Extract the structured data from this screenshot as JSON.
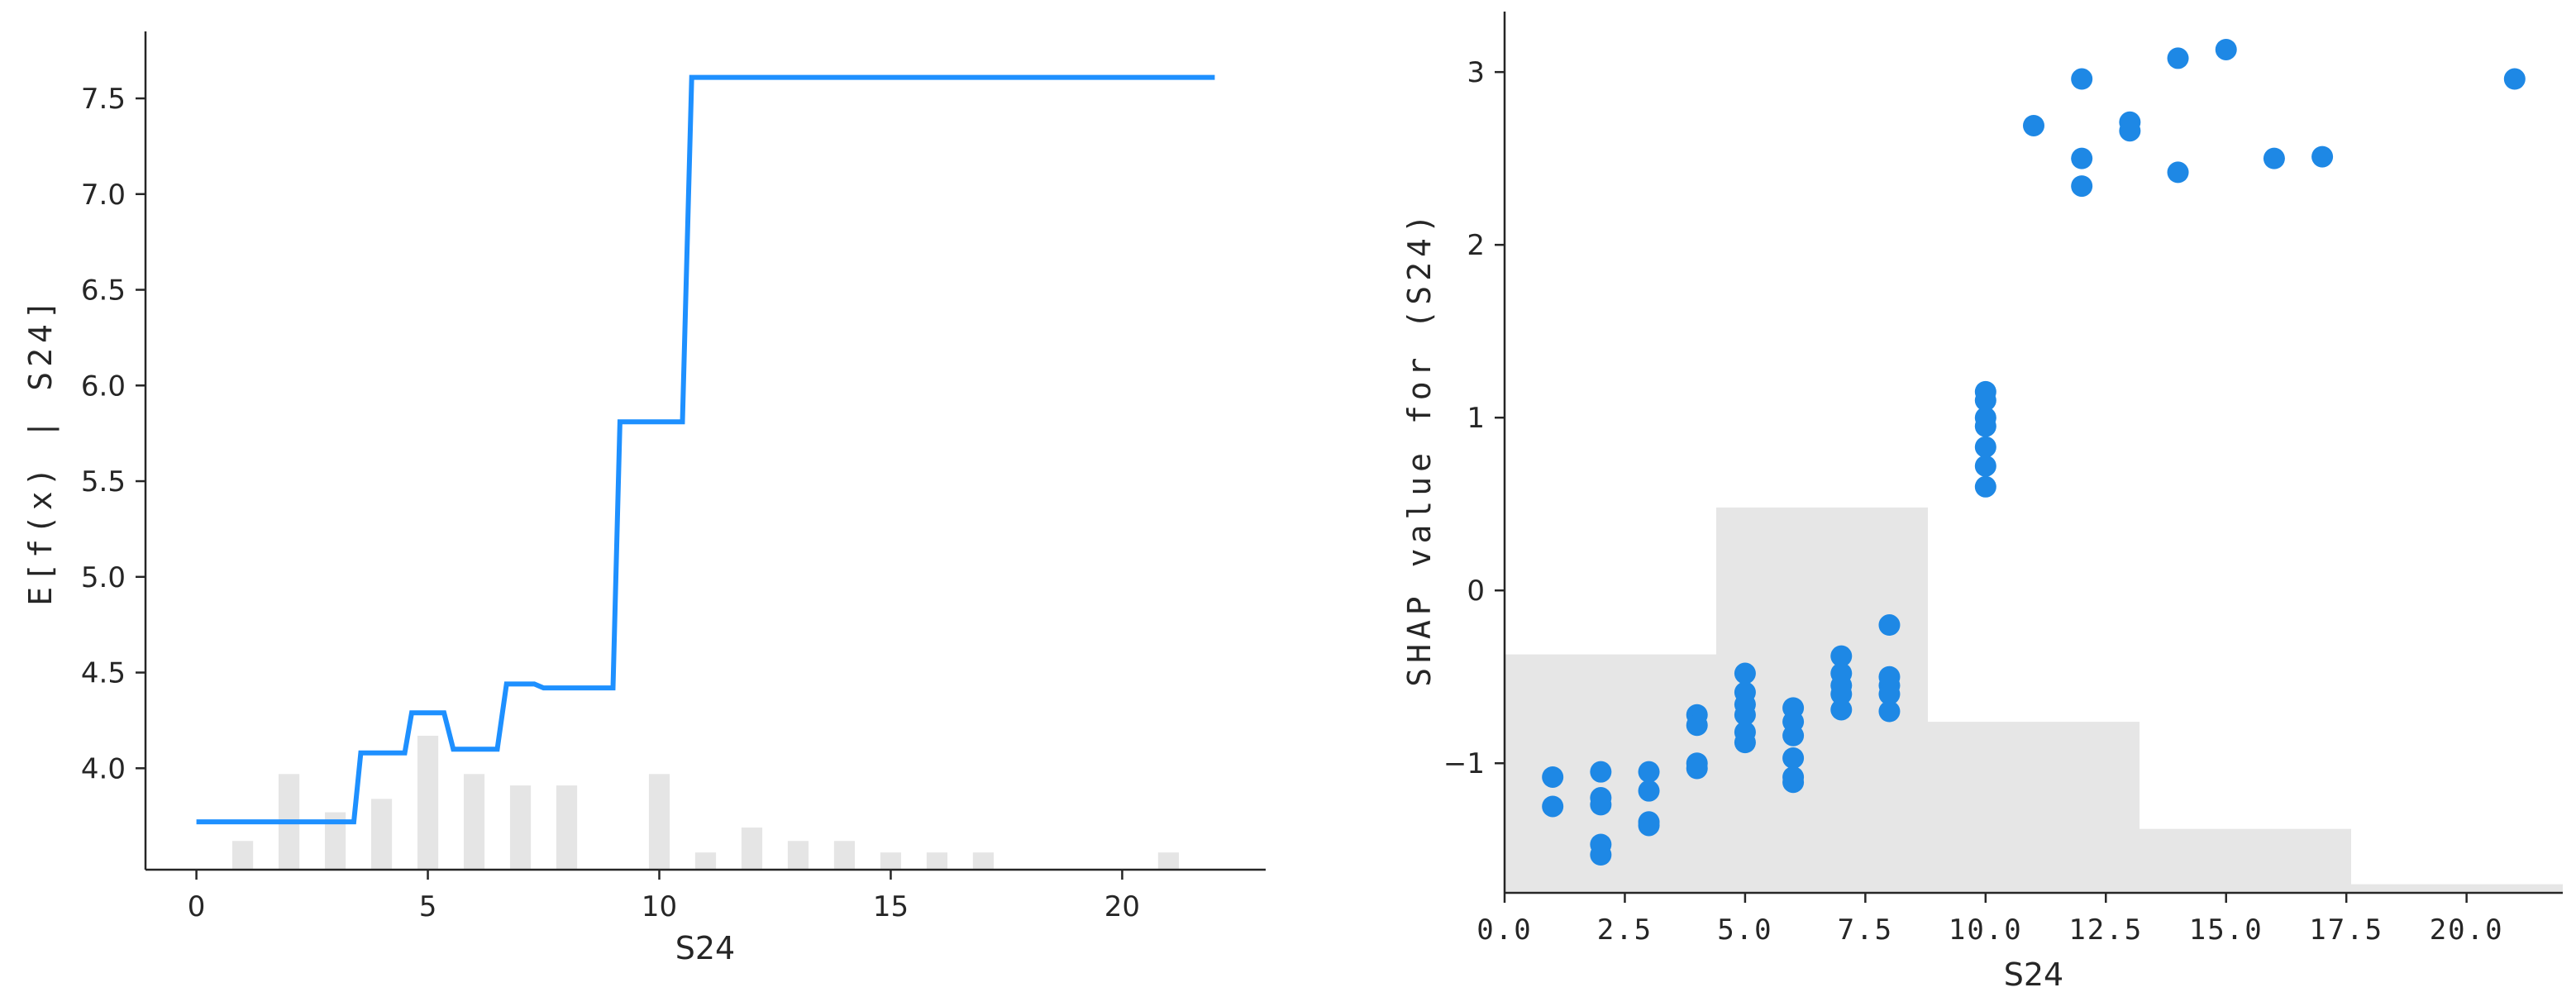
{
  "chart_data": [
    {
      "type": "line",
      "xlabel": "S24",
      "ylabel": "E[f(x) | S24]",
      "xlim": [
        -1.1,
        23.1
      ],
      "ylim": [
        3.47,
        7.85
      ],
      "xticks": [
        0,
        5,
        10,
        15,
        20
      ],
      "yticks": [
        4.0,
        4.5,
        5.0,
        5.5,
        6.0,
        6.5,
        7.0,
        7.5
      ],
      "ytick_labels": [
        "4.0",
        "4.5",
        "5.0",
        "5.5",
        "6.0",
        "6.5",
        "7.0",
        "7.5"
      ],
      "line_color": "#1E90FF",
      "histogram_color": "#E5E5E5",
      "series": [
        {
          "x": [
            0,
            3.4,
            3.55,
            4.5,
            4.65,
            5.35,
            5.55,
            6.5,
            6.7,
            7.3,
            7.5,
            9.0,
            9.15,
            10.5,
            10.7,
            22
          ],
          "y": [
            3.72,
            3.72,
            4.08,
            4.08,
            4.29,
            4.29,
            4.1,
            4.1,
            4.44,
            4.44,
            4.42,
            4.42,
            5.81,
            5.81,
            7.61,
            7.61
          ]
        }
      ],
      "histogram": {
        "bins": [
          1,
          2,
          3,
          4,
          5,
          6,
          7,
          8,
          10,
          11,
          12,
          13,
          14,
          15,
          16,
          17,
          21
        ],
        "heights": [
          3.62,
          3.97,
          3.77,
          3.84,
          4.17,
          3.97,
          3.91,
          3.91,
          3.97,
          3.56,
          3.69,
          3.62,
          3.62,
          3.56,
          3.56,
          3.56,
          3.56
        ]
      }
    },
    {
      "type": "scatter",
      "xlabel": "S24",
      "ylabel": "SHAP value for  (S24)",
      "xlim": [
        0,
        22
      ],
      "ylim": [
        -1.75,
        3.35
      ],
      "xticks": [
        0,
        2.5,
        5,
        7.5,
        10,
        12.5,
        15,
        17.5,
        20
      ],
      "xtick_labels": [
        "0.0",
        "2.5",
        "5.0",
        "7.5",
        "10.0",
        "12.5",
        "15.0",
        "17.5",
        "20.0"
      ],
      "yticks": [
        -1,
        0,
        1,
        2,
        3
      ],
      "ytick_labels": [
        "−1",
        "0",
        "1",
        "2",
        "3"
      ],
      "point_color": "#1E88E5",
      "histogram_color": "#E6E6E6",
      "histogram": {
        "edges": [
          0,
          4.4,
          8.8,
          13.2,
          17.6,
          22
        ],
        "levels": [
          -0.37,
          0.48,
          -0.76,
          -1.38,
          -1.7
        ]
      },
      "points": [
        {
          "x": 1,
          "y": -1.08
        },
        {
          "x": 1,
          "y": -1.25
        },
        {
          "x": 2,
          "y": -1.05
        },
        {
          "x": 2,
          "y": -1.2
        },
        {
          "x": 2,
          "y": -1.24
        },
        {
          "x": 2,
          "y": -1.47
        },
        {
          "x": 2,
          "y": -1.53
        },
        {
          "x": 3,
          "y": -1.05
        },
        {
          "x": 3,
          "y": -1.16
        },
        {
          "x": 3,
          "y": -1.34
        },
        {
          "x": 3,
          "y": -1.36
        },
        {
          "x": 4,
          "y": -0.72
        },
        {
          "x": 4,
          "y": -0.78
        },
        {
          "x": 4,
          "y": -1.0
        },
        {
          "x": 4,
          "y": -1.03
        },
        {
          "x": 5,
          "y": -0.48
        },
        {
          "x": 5,
          "y": -0.59
        },
        {
          "x": 5,
          "y": -0.66
        },
        {
          "x": 5,
          "y": -0.72
        },
        {
          "x": 5,
          "y": -0.82
        },
        {
          "x": 5,
          "y": -0.88
        },
        {
          "x": 6,
          "y": -0.68
        },
        {
          "x": 6,
          "y": -0.76
        },
        {
          "x": 6,
          "y": -0.84
        },
        {
          "x": 6,
          "y": -0.97
        },
        {
          "x": 6,
          "y": -1.08
        },
        {
          "x": 6,
          "y": -1.11
        },
        {
          "x": 7,
          "y": -0.38
        },
        {
          "x": 7,
          "y": -0.48
        },
        {
          "x": 7,
          "y": -0.55
        },
        {
          "x": 7,
          "y": -0.6
        },
        {
          "x": 7,
          "y": -0.69
        },
        {
          "x": 8,
          "y": -0.2
        },
        {
          "x": 8,
          "y": -0.5
        },
        {
          "x": 8,
          "y": -0.55
        },
        {
          "x": 8,
          "y": -0.6
        },
        {
          "x": 8,
          "y": -0.7
        },
        {
          "x": 10,
          "y": 1.15
        },
        {
          "x": 10,
          "y": 1.1
        },
        {
          "x": 10,
          "y": 1.0
        },
        {
          "x": 10,
          "y": 0.95
        },
        {
          "x": 10,
          "y": 0.83
        },
        {
          "x": 10,
          "y": 0.72
        },
        {
          "x": 10,
          "y": 0.6
        },
        {
          "x": 11,
          "y": 2.69
        },
        {
          "x": 12,
          "y": 2.96
        },
        {
          "x": 12,
          "y": 2.5
        },
        {
          "x": 12,
          "y": 2.34
        },
        {
          "x": 13,
          "y": 2.71
        },
        {
          "x": 13,
          "y": 2.66
        },
        {
          "x": 14,
          "y": 3.08
        },
        {
          "x": 14,
          "y": 2.42
        },
        {
          "x": 15,
          "y": 3.13
        },
        {
          "x": 16,
          "y": 2.5
        },
        {
          "x": 17,
          "y": 2.51
        },
        {
          "x": 21,
          "y": 2.96
        }
      ]
    }
  ]
}
